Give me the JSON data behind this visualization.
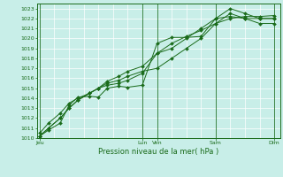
{
  "bg_color": "#c8eee8",
  "grid_color": "#ffffff",
  "line_color": "#1a6b1a",
  "marker_color": "#1a6b1a",
  "tick_label_color": "#1a6b1a",
  "axis_color": "#1a6b1a",
  "xlabel_text": "Pression niveau de la mer( hPa )",
  "ylim": [
    1010,
    1023.5
  ],
  "yticks": [
    1010,
    1011,
    1012,
    1013,
    1014,
    1015,
    1016,
    1017,
    1018,
    1019,
    1020,
    1021,
    1022,
    1023
  ],
  "x_day_labels": [
    {
      "label": "Jeu",
      "x": 0.0
    },
    {
      "label": "Lun",
      "x": 3.5
    },
    {
      "label": "Ven",
      "x": 4.0
    },
    {
      "label": "Sam",
      "x": 6.0
    },
    {
      "label": "Dim",
      "x": 8.0
    }
  ],
  "series": [
    {
      "x": [
        0.0,
        0.3,
        0.7,
        1.0,
        1.3,
        1.7,
        2.0,
        2.3,
        2.7,
        3.0,
        3.5,
        4.0,
        4.5,
        5.0,
        5.5,
        6.0,
        6.5,
        7.0,
        7.5,
        8.0
      ],
      "y": [
        1010.2,
        1010.8,
        1011.5,
        1013.3,
        1014.1,
        1014.2,
        1014.1,
        1015.0,
        1015.2,
        1015.1,
        1015.3,
        1019.5,
        1020.1,
        1020.1,
        1020.2,
        1022.0,
        1022.2,
        1022.0,
        1022.0,
        1022.0
      ]
    },
    {
      "x": [
        0.0,
        0.3,
        0.7,
        1.0,
        1.3,
        1.7,
        2.0,
        2.3,
        2.7,
        3.0,
        3.5,
        4.0,
        4.5,
        5.0,
        5.5,
        6.0,
        6.5,
        7.0,
        7.5,
        8.0
      ],
      "y": [
        1010.5,
        1011.5,
        1012.5,
        1013.5,
        1014.0,
        1014.5,
        1015.0,
        1015.3,
        1015.5,
        1015.8,
        1016.5,
        1018.5,
        1019.0,
        1020.0,
        1021.0,
        1022.0,
        1023.0,
        1022.5,
        1022.0,
        1022.0
      ]
    },
    {
      "x": [
        0.0,
        0.3,
        0.7,
        1.0,
        1.3,
        1.7,
        2.0,
        2.3,
        2.7,
        3.0,
        3.5,
        4.0,
        4.5,
        5.0,
        5.5,
        6.0,
        6.5,
        7.0,
        7.5,
        8.0
      ],
      "y": [
        1010.2,
        1011.0,
        1012.0,
        1013.0,
        1013.8,
        1014.5,
        1015.0,
        1015.5,
        1015.8,
        1016.2,
        1016.7,
        1017.0,
        1018.0,
        1019.0,
        1020.0,
        1021.5,
        1022.5,
        1022.0,
        1021.5,
        1021.5
      ]
    },
    {
      "x": [
        0.0,
        0.3,
        0.7,
        1.0,
        1.3,
        1.7,
        2.0,
        2.3,
        2.7,
        3.0,
        3.5,
        4.0,
        4.5,
        5.0,
        5.5,
        6.0,
        6.5,
        7.0,
        7.5,
        8.0
      ],
      "y": [
        1010.2,
        1011.0,
        1012.0,
        1013.0,
        1013.8,
        1014.5,
        1015.0,
        1015.7,
        1016.2,
        1016.7,
        1017.2,
        1018.5,
        1019.5,
        1020.2,
        1020.8,
        1021.5,
        1022.0,
        1022.2,
        1022.2,
        1022.3
      ]
    }
  ],
  "vlines": [
    0.0,
    3.5,
    4.0,
    6.0,
    8.0
  ],
  "minor_x_spacing": 0.5,
  "xlim": [
    -0.1,
    8.2
  ]
}
